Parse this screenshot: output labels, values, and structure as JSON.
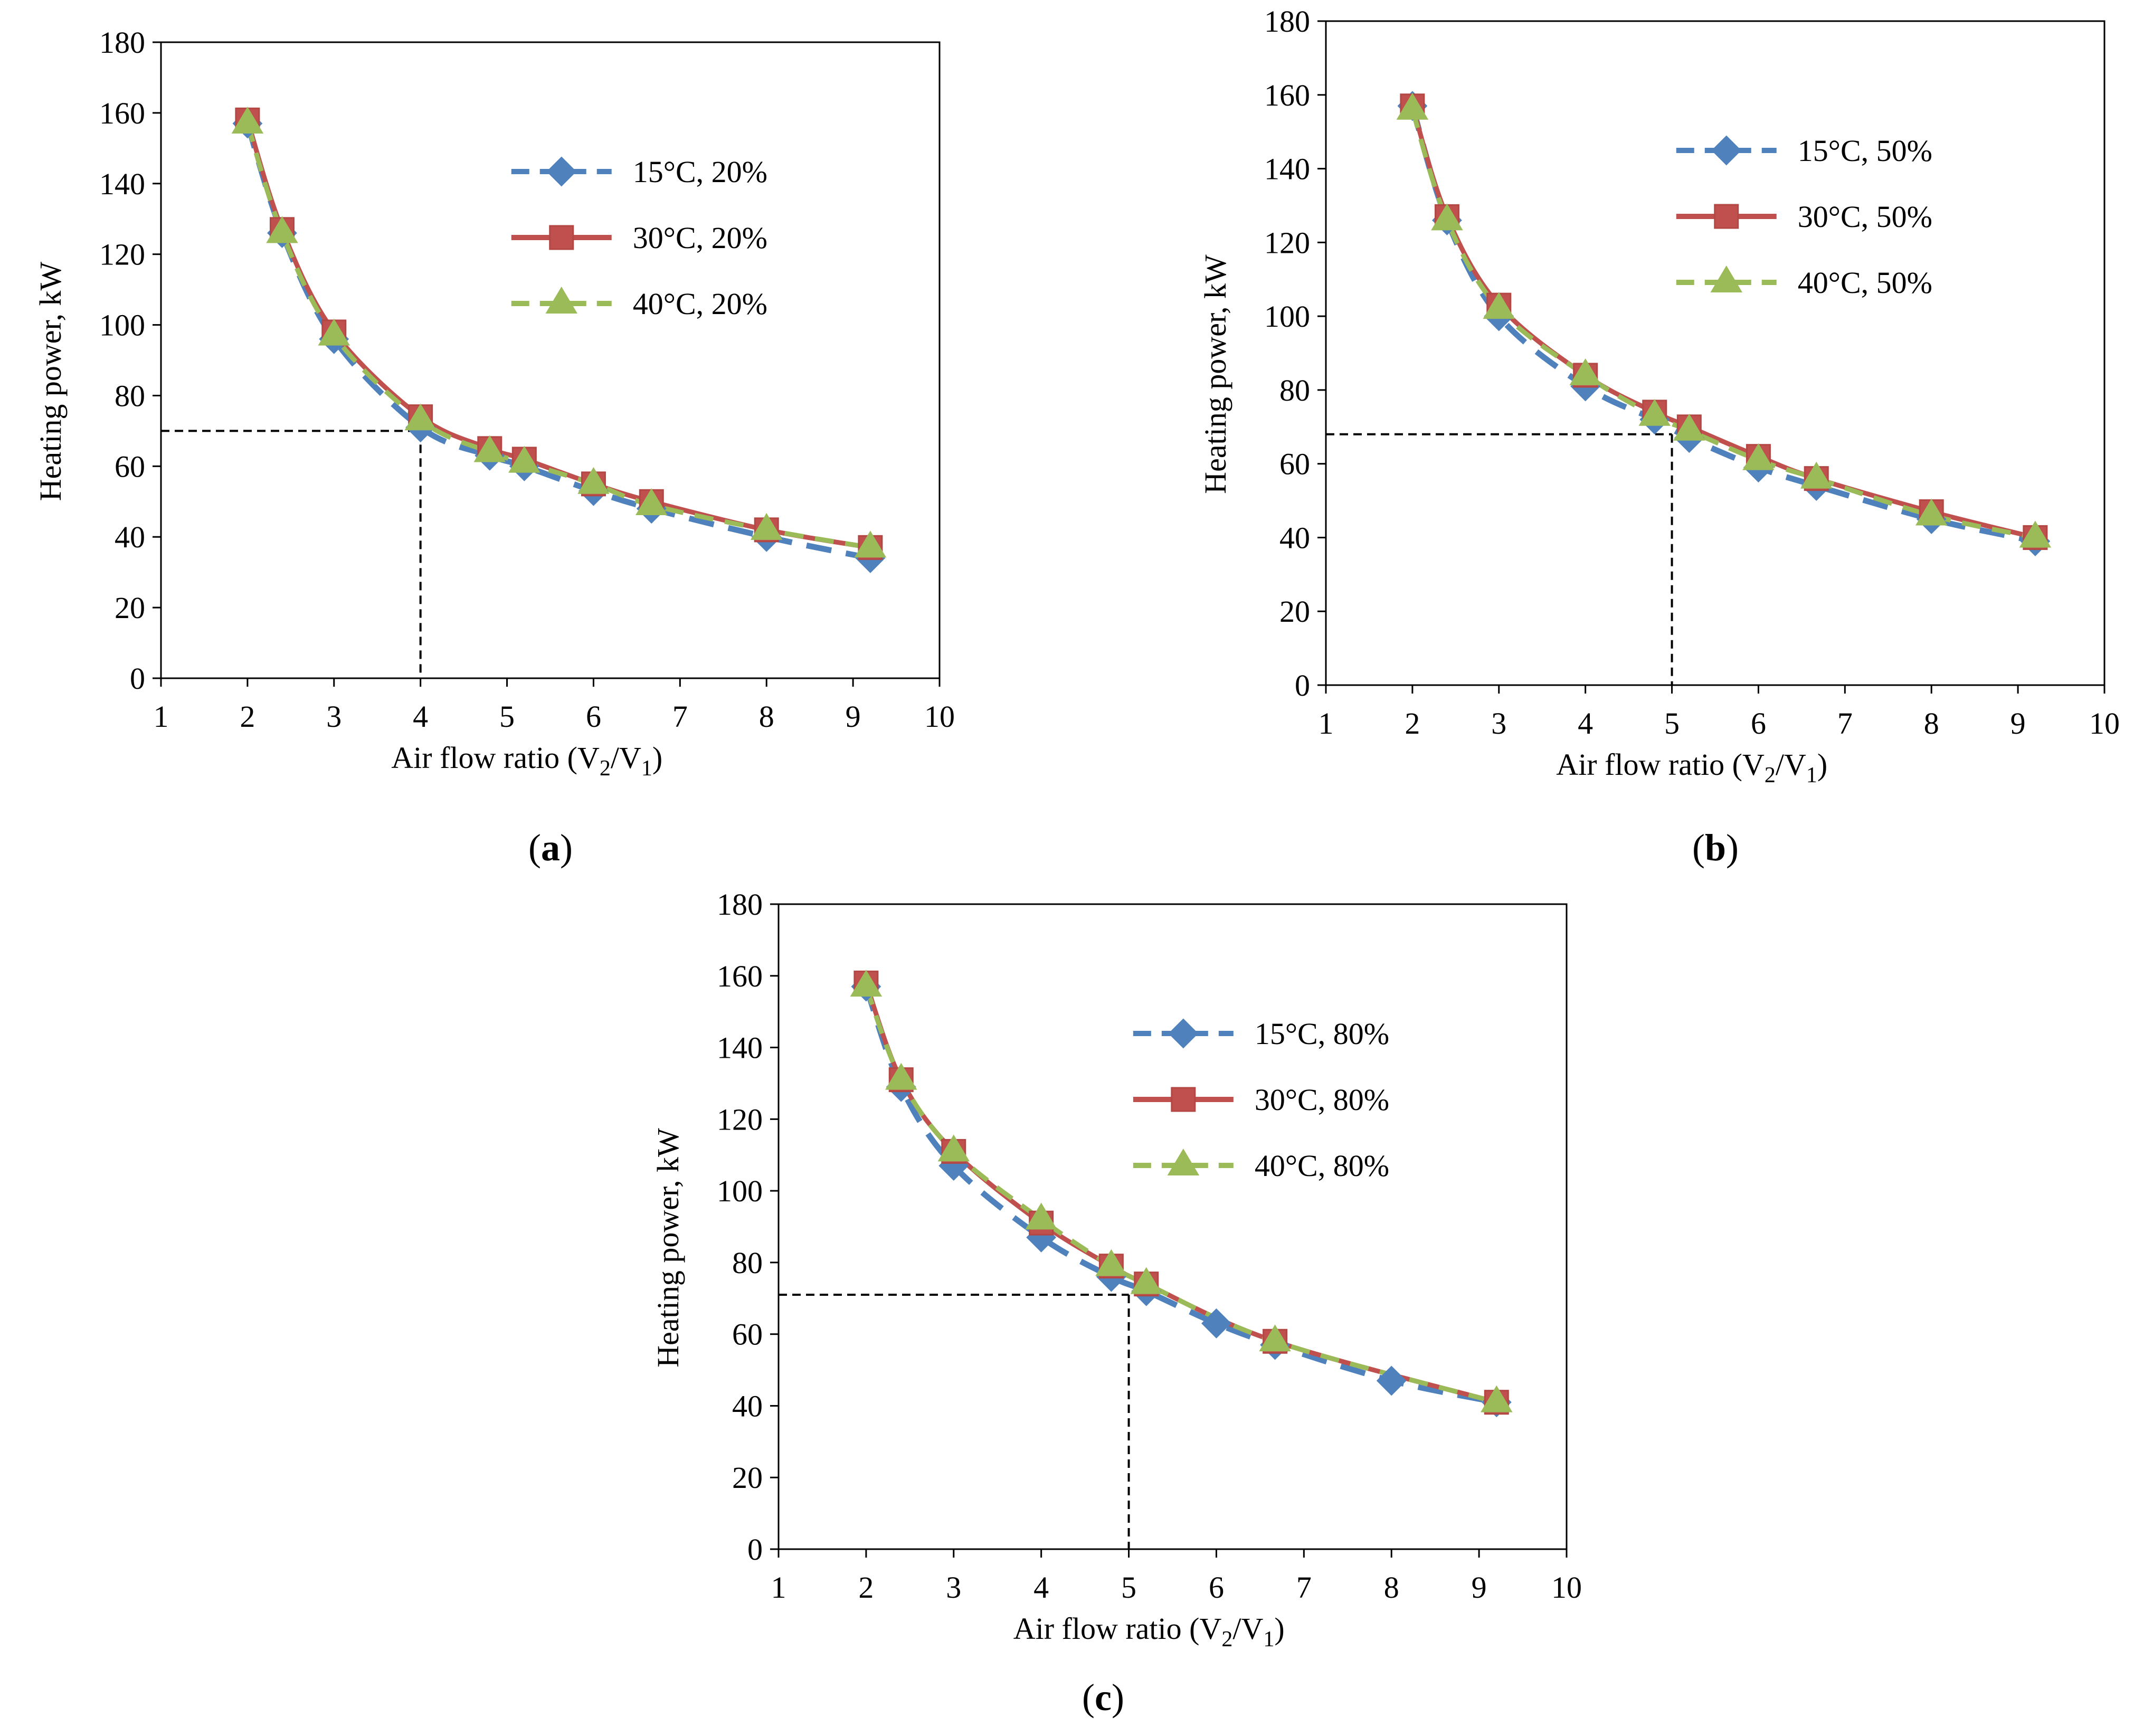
{
  "chart_data": [
    {
      "type": "line",
      "panel_label": "a",
      "xlabel": "Air flow ratio (V2/V1)",
      "ylabel": "Heating power, kW",
      "xlim": [
        1,
        10
      ],
      "ylim": [
        0,
        180
      ],
      "xticks": [
        1,
        2,
        3,
        4,
        5,
        6,
        7,
        8,
        9,
        10
      ],
      "yticks": [
        0,
        20,
        40,
        60,
        80,
        100,
        120,
        140,
        160,
        180
      ],
      "legend_position": "top-right",
      "reference_point": {
        "x": 4,
        "y": 70
      },
      "series": [
        {
          "name": "15°C, 20%",
          "color": "#4F81BD",
          "style": "dashed",
          "marker": "diamond",
          "x": [
            2,
            2.4,
            3,
            4,
            4.8,
            5.2,
            6,
            6.67,
            8,
            9.2
          ],
          "values": [
            157,
            126,
            96,
            71,
            63,
            60,
            53,
            48,
            40,
            34
          ]
        },
        {
          "name": "30°C, 20%",
          "color": "#C0504D",
          "style": "solid",
          "marker": "square",
          "x": [
            2,
            2.4,
            3,
            4,
            4.8,
            5.2,
            6,
            6.67,
            8,
            9.2
          ],
          "values": [
            158,
            127,
            98,
            74,
            65,
            62,
            55,
            50,
            42,
            37
          ]
        },
        {
          "name": "40°C, 20%",
          "color": "#9BBB59",
          "style": "dashed",
          "marker": "triangle",
          "x": [
            2,
            2.4,
            3,
            4,
            4.8,
            5.2,
            6,
            6.67,
            8,
            9.2
          ],
          "values": [
            157,
            126,
            97,
            73,
            64,
            61,
            55,
            49,
            42,
            37
          ]
        }
      ]
    },
    {
      "type": "line",
      "panel_label": "b",
      "xlabel": "Air flow ratio (V2/V1)",
      "ylabel": "Heating power, kW",
      "xlim": [
        1,
        10
      ],
      "ylim": [
        0,
        180
      ],
      "xticks": [
        1,
        2,
        3,
        4,
        5,
        6,
        7,
        8,
        9,
        10
      ],
      "yticks": [
        0,
        20,
        40,
        60,
        80,
        100,
        120,
        140,
        160,
        180
      ],
      "legend_position": "top-right",
      "reference_point": {
        "x": 5,
        "y": 68
      },
      "series": [
        {
          "name": "15°C, 50%",
          "color": "#4F81BD",
          "style": "dashed",
          "marker": "diamond",
          "x": [
            2,
            2.4,
            3,
            4,
            4.8,
            5.2,
            6,
            6.67,
            8,
            9.2
          ],
          "values": [
            157,
            126,
            100,
            81,
            72,
            67,
            59,
            54,
            45,
            39
          ]
        },
        {
          "name": "30°C, 50%",
          "color": "#C0504D",
          "style": "solid",
          "marker": "square",
          "x": [
            2,
            2.4,
            3,
            4,
            4.8,
            5.2,
            6,
            6.67,
            8,
            9.2
          ],
          "values": [
            157,
            127,
            103,
            84,
            74,
            70,
            62,
            56,
            47,
            40
          ]
        },
        {
          "name": "40°C, 50%",
          "color": "#9BBB59",
          "style": "dashed",
          "marker": "triangle",
          "x": [
            2,
            2.4,
            3,
            4,
            4.8,
            5.2,
            6,
            6.67,
            8,
            9.2
          ],
          "values": [
            156,
            126,
            102,
            84,
            73,
            69,
            61,
            56,
            46,
            40
          ]
        }
      ]
    },
    {
      "type": "line",
      "panel_label": "c",
      "xlabel": "Air flow ratio (V2/V1)",
      "ylabel": "Heating power, kW",
      "xlim": [
        1,
        10
      ],
      "ylim": [
        0,
        180
      ],
      "xticks": [
        1,
        2,
        3,
        4,
        5,
        6,
        7,
        8,
        9,
        10
      ],
      "yticks": [
        0,
        20,
        40,
        60,
        80,
        100,
        120,
        140,
        160,
        180
      ],
      "legend_position": "top-right",
      "reference_point": {
        "x": 5,
        "y": 71
      },
      "series": [
        {
          "name": "15°C, 80%",
          "color": "#4F81BD",
          "style": "dashed",
          "marker": "diamond",
          "x": [
            2,
            2.4,
            3,
            4,
            4.8,
            5.2,
            6,
            6.67,
            8,
            9.2
          ],
          "values": [
            157,
            129,
            107,
            87,
            76,
            72,
            63,
            57,
            47,
            41
          ]
        },
        {
          "name": "30°C, 80%",
          "color": "#C0504D",
          "style": "solid",
          "marker": "square",
          "x": [
            2,
            2.4,
            3,
            4,
            4.8,
            5.2,
            6.67,
            9.2
          ],
          "values": [
            158,
            131,
            111,
            91,
            79,
            74,
            58,
            41
          ]
        },
        {
          "name": "40°C, 80%",
          "color": "#9BBB59",
          "style": "dashed",
          "marker": "triangle",
          "x": [
            2,
            2.4,
            3,
            4,
            4.8,
            5.2,
            6.67,
            9.2
          ],
          "values": [
            157,
            131,
            111,
            92,
            79,
            74,
            58,
            41
          ]
        }
      ]
    }
  ]
}
